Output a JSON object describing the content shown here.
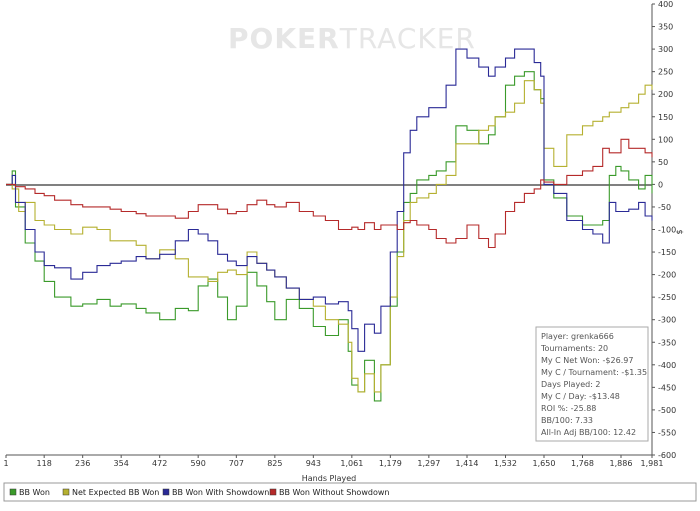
{
  "brand": {
    "watermark_prefix": "P",
    "watermark_o": "O",
    "watermark_rest": "KER",
    "watermark_suffix": "TRACKER"
  },
  "stats": [
    "Player: grenka666",
    "Tournaments: 20",
    "My C Net Won: -$26.97",
    "My C / Tournament: -$1.35",
    "Days Played: 2",
    "My C / Day: -$13.48",
    "ROI %: -25.88",
    "BB/100: 7.33",
    "All-In Adj BB/100: 12.42"
  ],
  "chart_data": {
    "type": "line",
    "xlabel": "Hands Played",
    "ylabel": "$",
    "xlim": [
      1,
      1981
    ],
    "ylim": [
      -600,
      400
    ],
    "x_ticks": [
      "1",
      "118",
      "236",
      "354",
      "472",
      "590",
      "707",
      "825",
      "943",
      "1,061",
      "1,179",
      "1,297",
      "1,414",
      "1,532",
      "1,650",
      "1,768",
      "1,886",
      "1,981"
    ],
    "x_tick_values": [
      1,
      118,
      236,
      354,
      472,
      590,
      707,
      825,
      943,
      1061,
      1179,
      1297,
      1414,
      1532,
      1650,
      1768,
      1886,
      1981
    ],
    "y_ticks": [
      "400",
      "350",
      "300",
      "250",
      "200",
      "150",
      "100",
      "50",
      "0",
      "-50",
      "-100",
      "-150",
      "-200",
      "-250",
      "-300",
      "-350",
      "-400",
      "-450",
      "-500",
      "-550",
      "-600"
    ],
    "y_tick_values": [
      400,
      350,
      300,
      250,
      200,
      150,
      100,
      50,
      0,
      -50,
      -100,
      -150,
      -200,
      -250,
      -300,
      -350,
      -400,
      -450,
      -500,
      -550,
      -600
    ],
    "grid": false,
    "legend_position": "bottom",
    "series": [
      {
        "name": "BB Won",
        "color": "#3a9a2a",
        "points": [
          [
            1,
            0
          ],
          [
            20,
            30
          ],
          [
            30,
            -50
          ],
          [
            60,
            -130
          ],
          [
            90,
            -170
          ],
          [
            118,
            -215
          ],
          [
            150,
            -250
          ],
          [
            200,
            -270
          ],
          [
            236,
            -265
          ],
          [
            280,
            -255
          ],
          [
            320,
            -270
          ],
          [
            354,
            -265
          ],
          [
            400,
            -275
          ],
          [
            430,
            -285
          ],
          [
            472,
            -300
          ],
          [
            520,
            -275
          ],
          [
            560,
            -280
          ],
          [
            590,
            -225
          ],
          [
            620,
            -210
          ],
          [
            650,
            -250
          ],
          [
            680,
            -300
          ],
          [
            707,
            -270
          ],
          [
            740,
            -195
          ],
          [
            770,
            -225
          ],
          [
            800,
            -260
          ],
          [
            825,
            -300
          ],
          [
            860,
            -255
          ],
          [
            900,
            -275
          ],
          [
            943,
            -315
          ],
          [
            980,
            -335
          ],
          [
            1020,
            -300
          ],
          [
            1050,
            -370
          ],
          [
            1061,
            -445
          ],
          [
            1080,
            -460
          ],
          [
            1100,
            -390
          ],
          [
            1130,
            -480
          ],
          [
            1150,
            -400
          ],
          [
            1179,
            -270
          ],
          [
            1200,
            -150
          ],
          [
            1220,
            -40
          ],
          [
            1240,
            -20
          ],
          [
            1260,
            10
          ],
          [
            1297,
            20
          ],
          [
            1320,
            30
          ],
          [
            1350,
            50
          ],
          [
            1380,
            130
          ],
          [
            1414,
            120
          ],
          [
            1450,
            90
          ],
          [
            1480,
            110
          ],
          [
            1500,
            150
          ],
          [
            1532,
            220
          ],
          [
            1560,
            240
          ],
          [
            1590,
            250
          ],
          [
            1620,
            210
          ],
          [
            1640,
            190
          ],
          [
            1650,
            10
          ],
          [
            1680,
            -30
          ],
          [
            1720,
            -70
          ],
          [
            1768,
            -90
          ],
          [
            1800,
            -90
          ],
          [
            1830,
            -80
          ],
          [
            1850,
            20
          ],
          [
            1870,
            40
          ],
          [
            1886,
            30
          ],
          [
            1910,
            10
          ],
          [
            1940,
            -10
          ],
          [
            1960,
            20
          ],
          [
            1981,
            -20
          ]
        ]
      },
      {
        "name": "Net Expected BB Won",
        "color": "#b5b030",
        "points": [
          [
            1,
            0
          ],
          [
            20,
            -10
          ],
          [
            40,
            -60
          ],
          [
            60,
            -40
          ],
          [
            90,
            -80
          ],
          [
            118,
            -90
          ],
          [
            150,
            -100
          ],
          [
            200,
            -110
          ],
          [
            236,
            -95
          ],
          [
            280,
            -100
          ],
          [
            320,
            -125
          ],
          [
            354,
            -125
          ],
          [
            400,
            -135
          ],
          [
            430,
            -165
          ],
          [
            472,
            -145
          ],
          [
            520,
            -165
          ],
          [
            560,
            -205
          ],
          [
            590,
            -205
          ],
          [
            620,
            -215
          ],
          [
            650,
            -195
          ],
          [
            680,
            -190
          ],
          [
            707,
            -200
          ],
          [
            740,
            -150
          ],
          [
            770,
            -175
          ],
          [
            800,
            -190
          ],
          [
            825,
            -205
          ],
          [
            860,
            -230
          ],
          [
            900,
            -255
          ],
          [
            943,
            -270
          ],
          [
            980,
            -300
          ],
          [
            1020,
            -310
          ],
          [
            1050,
            -350
          ],
          [
            1061,
            -430
          ],
          [
            1080,
            -460
          ],
          [
            1100,
            -420
          ],
          [
            1130,
            -460
          ],
          [
            1150,
            -400
          ],
          [
            1179,
            -250
          ],
          [
            1200,
            -160
          ],
          [
            1220,
            -80
          ],
          [
            1240,
            -40
          ],
          [
            1260,
            -30
          ],
          [
            1297,
            -20
          ],
          [
            1320,
            0
          ],
          [
            1350,
            20
          ],
          [
            1380,
            90
          ],
          [
            1414,
            90
          ],
          [
            1450,
            120
          ],
          [
            1480,
            130
          ],
          [
            1500,
            150
          ],
          [
            1532,
            160
          ],
          [
            1560,
            180
          ],
          [
            1590,
            230
          ],
          [
            1620,
            210
          ],
          [
            1640,
            180
          ],
          [
            1650,
            80
          ],
          [
            1680,
            40
          ],
          [
            1720,
            110
          ],
          [
            1768,
            130
          ],
          [
            1800,
            140
          ],
          [
            1830,
            150
          ],
          [
            1850,
            160
          ],
          [
            1886,
            170
          ],
          [
            1910,
            180
          ],
          [
            1940,
            200
          ],
          [
            1960,
            220
          ],
          [
            1981,
            210
          ]
        ]
      },
      {
        "name": "BB Won With Showdown",
        "color": "#2a2a96",
        "points": [
          [
            1,
            0
          ],
          [
            20,
            20
          ],
          [
            30,
            -40
          ],
          [
            60,
            -100
          ],
          [
            90,
            -150
          ],
          [
            118,
            -180
          ],
          [
            150,
            -185
          ],
          [
            200,
            -210
          ],
          [
            236,
            -195
          ],
          [
            280,
            -180
          ],
          [
            320,
            -175
          ],
          [
            354,
            -170
          ],
          [
            400,
            -160
          ],
          [
            430,
            -165
          ],
          [
            472,
            -155
          ],
          [
            520,
            -125
          ],
          [
            560,
            -100
          ],
          [
            590,
            -110
          ],
          [
            620,
            -125
          ],
          [
            650,
            -155
          ],
          [
            680,
            -170
          ],
          [
            707,
            -180
          ],
          [
            740,
            -160
          ],
          [
            770,
            -175
          ],
          [
            800,
            -190
          ],
          [
            825,
            -205
          ],
          [
            860,
            -230
          ],
          [
            900,
            -255
          ],
          [
            943,
            -250
          ],
          [
            980,
            -265
          ],
          [
            1020,
            -260
          ],
          [
            1050,
            -280
          ],
          [
            1061,
            -320
          ],
          [
            1080,
            -370
          ],
          [
            1100,
            -310
          ],
          [
            1130,
            -330
          ],
          [
            1150,
            -270
          ],
          [
            1179,
            -150
          ],
          [
            1200,
            -60
          ],
          [
            1220,
            70
          ],
          [
            1240,
            120
          ],
          [
            1260,
            150
          ],
          [
            1297,
            170
          ],
          [
            1320,
            170
          ],
          [
            1350,
            220
          ],
          [
            1380,
            300
          ],
          [
            1414,
            280
          ],
          [
            1450,
            260
          ],
          [
            1480,
            240
          ],
          [
            1500,
            260
          ],
          [
            1532,
            280
          ],
          [
            1560,
            300
          ],
          [
            1590,
            300
          ],
          [
            1620,
            270
          ],
          [
            1640,
            240
          ],
          [
            1650,
            0
          ],
          [
            1680,
            -20
          ],
          [
            1720,
            -80
          ],
          [
            1768,
            -100
          ],
          [
            1800,
            -110
          ],
          [
            1830,
            -130
          ],
          [
            1850,
            -40
          ],
          [
            1870,
            -60
          ],
          [
            1886,
            -60
          ],
          [
            1910,
            -55
          ],
          [
            1940,
            -40
          ],
          [
            1960,
            -70
          ],
          [
            1981,
            -80
          ]
        ]
      },
      {
        "name": "BB Won Without Showdown",
        "color": "#b52a2a",
        "points": [
          [
            1,
            0
          ],
          [
            30,
            -5
          ],
          [
            60,
            -10
          ],
          [
            90,
            -20
          ],
          [
            118,
            -25
          ],
          [
            150,
            -35
          ],
          [
            200,
            -45
          ],
          [
            236,
            -50
          ],
          [
            280,
            -50
          ],
          [
            320,
            -55
          ],
          [
            354,
            -60
          ],
          [
            400,
            -65
          ],
          [
            430,
            -70
          ],
          [
            472,
            -70
          ],
          [
            520,
            -75
          ],
          [
            560,
            -60
          ],
          [
            590,
            -45
          ],
          [
            620,
            -45
          ],
          [
            650,
            -55
          ],
          [
            680,
            -65
          ],
          [
            707,
            -60
          ],
          [
            740,
            -45
          ],
          [
            770,
            -35
          ],
          [
            800,
            -45
          ],
          [
            825,
            -50
          ],
          [
            860,
            -40
          ],
          [
            900,
            -60
          ],
          [
            943,
            -70
          ],
          [
            980,
            -80
          ],
          [
            1020,
            -100
          ],
          [
            1050,
            -100
          ],
          [
            1061,
            -95
          ],
          [
            1080,
            -100
          ],
          [
            1100,
            -85
          ],
          [
            1130,
            -100
          ],
          [
            1150,
            -90
          ],
          [
            1179,
            -90
          ],
          [
            1200,
            -100
          ],
          [
            1220,
            -85
          ],
          [
            1240,
            -80
          ],
          [
            1260,
            -90
          ],
          [
            1297,
            -100
          ],
          [
            1320,
            -120
          ],
          [
            1350,
            -130
          ],
          [
            1380,
            -120
          ],
          [
            1414,
            -90
          ],
          [
            1450,
            -120
          ],
          [
            1480,
            -140
          ],
          [
            1500,
            -110
          ],
          [
            1532,
            -60
          ],
          [
            1560,
            -40
          ],
          [
            1590,
            -20
          ],
          [
            1620,
            -10
          ],
          [
            1640,
            10
          ],
          [
            1650,
            5
          ],
          [
            1680,
            0
          ],
          [
            1720,
            20
          ],
          [
            1768,
            30
          ],
          [
            1800,
            40
          ],
          [
            1830,
            80
          ],
          [
            1850,
            70
          ],
          [
            1870,
            70
          ],
          [
            1886,
            100
          ],
          [
            1910,
            80
          ],
          [
            1940,
            80
          ],
          [
            1960,
            70
          ],
          [
            1981,
            60
          ]
        ]
      }
    ]
  }
}
